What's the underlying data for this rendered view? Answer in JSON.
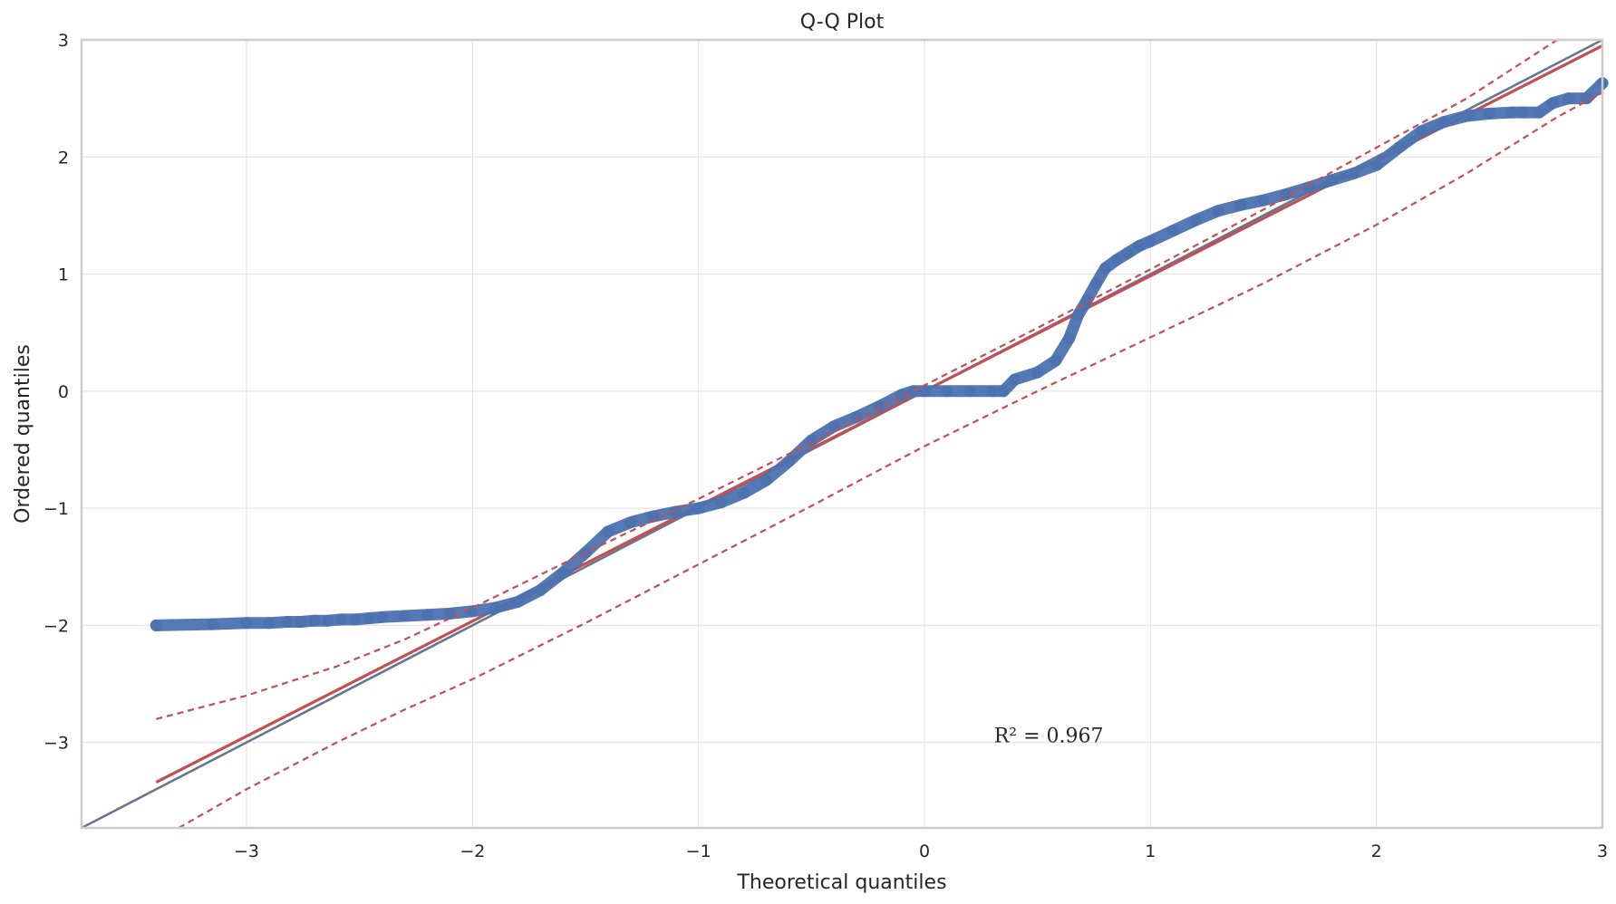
{
  "chart_data": {
    "type": "scatter",
    "title": "Q-Q Plot",
    "xlabel": "Theoretical quantiles",
    "ylabel": "Ordered quantiles",
    "xlim": [
      -3.73,
      3.0
    ],
    "ylim": [
      -3.73,
      3.0
    ],
    "xticks": [
      -3,
      -2,
      -1,
      0,
      1,
      2,
      3
    ],
    "yticks": [
      -3,
      -2,
      -1,
      0,
      1,
      2,
      3
    ],
    "xtick_labels": [
      "−3",
      "−2",
      "−1",
      "0",
      "1",
      "2",
      "3"
    ],
    "ytick_labels": [
      "−3",
      "−2",
      "−1",
      "0",
      "1",
      "2",
      "3"
    ],
    "grid": true,
    "annotation": {
      "text": "R² = 0.967",
      "x": 0.55,
      "y": -3.0
    },
    "colors": {
      "points": "#4c72b0",
      "fit": "#c44e52",
      "reference": "#65778f",
      "grid": "#e5e5e5",
      "spine": "#cccccc"
    },
    "sample_quantiles": {
      "x": [
        -3.4,
        -3.15,
        -3.0,
        -2.9,
        -2.82,
        -2.76,
        -2.7,
        -2.64,
        -2.58,
        -2.52,
        -2.46,
        -2.4,
        -2.3,
        -2.2,
        -2.1,
        -2.0,
        -1.9,
        -1.8,
        -1.7,
        -1.6,
        -1.5,
        -1.4,
        -1.3,
        -1.2,
        -1.1,
        -1.0,
        -0.9,
        -0.8,
        -0.7,
        -0.6,
        -0.5,
        -0.4,
        -0.3,
        -0.2,
        -0.1,
        -0.05,
        0.0,
        0.1,
        0.2,
        0.3,
        0.35,
        0.4,
        0.5,
        0.58,
        0.64,
        0.68,
        0.72,
        0.76,
        0.8,
        0.85,
        0.9,
        0.95,
        1.0,
        1.1,
        1.2,
        1.3,
        1.4,
        1.5,
        1.6,
        1.7,
        1.8,
        1.9,
        2.0,
        2.1,
        2.2,
        2.3,
        2.4,
        2.5,
        2.6,
        2.65,
        2.72,
        2.78,
        2.85,
        2.93,
        3.0
      ],
      "y": [
        -2.0,
        -1.99,
        -1.98,
        -1.98,
        -1.97,
        -1.97,
        -1.96,
        -1.96,
        -1.95,
        -1.95,
        -1.94,
        -1.93,
        -1.92,
        -1.91,
        -1.9,
        -1.88,
        -1.85,
        -1.8,
        -1.7,
        -1.55,
        -1.38,
        -1.2,
        -1.12,
        -1.07,
        -1.03,
        -1.0,
        -0.95,
        -0.87,
        -0.76,
        -0.6,
        -0.42,
        -0.3,
        -0.22,
        -0.13,
        -0.03,
        0.0,
        0.0,
        0.0,
        0.0,
        0.0,
        0.0,
        0.1,
        0.16,
        0.26,
        0.45,
        0.65,
        0.78,
        0.92,
        1.05,
        1.12,
        1.18,
        1.24,
        1.28,
        1.37,
        1.46,
        1.54,
        1.59,
        1.63,
        1.68,
        1.74,
        1.8,
        1.86,
        1.93,
        2.08,
        2.22,
        2.3,
        2.35,
        2.37,
        2.38,
        2.38,
        2.38,
        2.46,
        2.5,
        2.5,
        2.63
      ]
    },
    "fit_line": {
      "x": [
        -3.4,
        3.0
      ],
      "y": [
        -3.34,
        2.95
      ]
    },
    "reference_line": {
      "x": [
        -3.73,
        3.0
      ],
      "y": [
        -3.73,
        3.0
      ]
    },
    "confidence_upper": {
      "x": [
        -3.4,
        -3.0,
        -2.6,
        -2.3,
        -2.0,
        -1.5,
        -1.0,
        -0.5,
        0.0,
        0.5,
        1.0,
        1.5,
        2.0,
        2.4,
        2.8
      ],
      "y": [
        -2.8,
        -2.6,
        -2.35,
        -2.12,
        -1.85,
        -1.38,
        -0.92,
        -0.44,
        0.05,
        0.54,
        1.04,
        1.55,
        2.08,
        2.5,
        3.0
      ]
    },
    "confidence_lower": {
      "x": [
        -3.3,
        -3.0,
        -2.6,
        -2.3,
        -2.0,
        -1.5,
        -1.0,
        -0.5,
        0.0,
        0.5,
        1.0,
        1.5,
        2.0,
        2.4,
        2.8,
        3.0
      ],
      "y": [
        -3.73,
        -3.4,
        -3.0,
        -2.72,
        -2.46,
        -1.98,
        -1.48,
        -0.98,
        -0.47,
        0.0,
        0.46,
        0.92,
        1.42,
        1.86,
        2.34,
        2.55
      ]
    }
  }
}
